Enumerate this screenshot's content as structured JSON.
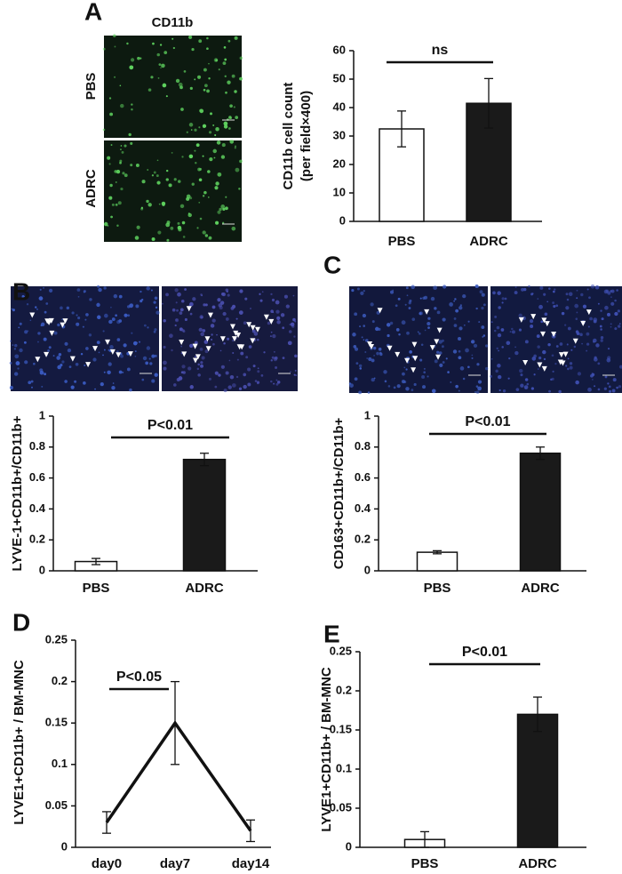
{
  "chart_data": [
    {
      "type": "bar",
      "panel": "A",
      "image_labels": {
        "column": "CD11b",
        "rows": [
          "PBS",
          "ADRC"
        ]
      },
      "ylabel": [
        "CD11b cell count",
        "(per field×400)"
      ],
      "categories": [
        "PBS",
        "ADRC"
      ],
      "values": [
        32.5,
        41.5
      ],
      "errors": [
        6.3,
        8.7
      ],
      "colors": [
        "#ffffff",
        "#1a1a1a"
      ],
      "ylim": [
        0,
        60
      ],
      "yticks": [
        0,
        10,
        20,
        30,
        40,
        50,
        60
      ],
      "annotation": "ns"
    },
    {
      "type": "bar",
      "panel": "B",
      "ylabel": [
        "LYVE-1+CD11b+/CD11b+"
      ],
      "categories": [
        "PBS",
        "ADRC"
      ],
      "values": [
        0.06,
        0.72
      ],
      "errors": [
        0.02,
        0.04
      ],
      "colors": [
        "#ffffff",
        "#1a1a1a"
      ],
      "ylim": [
        0,
        1
      ],
      "yticks": [
        0,
        0.2,
        0.4,
        0.6,
        0.8,
        1
      ],
      "annotation": "P<0.01"
    },
    {
      "type": "bar",
      "panel": "C",
      "ylabel": [
        "CD163+CD11b+/CD11b+"
      ],
      "categories": [
        "PBS",
        "ADRC"
      ],
      "values": [
        0.12,
        0.76
      ],
      "errors": [
        0.01,
        0.04
      ],
      "colors": [
        "#ffffff",
        "#1a1a1a"
      ],
      "ylim": [
        0,
        1
      ],
      "yticks": [
        0,
        0.2,
        0.4,
        0.6,
        0.8,
        1
      ],
      "annotation": "P<0.01"
    },
    {
      "type": "line",
      "panel": "D",
      "ylabel": [
        "LYVE1+CD11b+ / BM-MNC"
      ],
      "categories": [
        "day0",
        "day7",
        "day14"
      ],
      "values": [
        0.03,
        0.15,
        0.02
      ],
      "errors": [
        0.013,
        0.05,
        0.013
      ],
      "color": "#111111",
      "ylim": [
        0,
        0.25
      ],
      "yticks": [
        0,
        0.05,
        0.1,
        0.15,
        0.2,
        0.25
      ],
      "annotation": "P<0.05"
    },
    {
      "type": "bar",
      "panel": "E",
      "ylabel": [
        "LYVE1+CD11b+ / BM-MNC"
      ],
      "categories": [
        "PBS",
        "ADRC"
      ],
      "values": [
        0.01,
        0.17
      ],
      "errors": [
        0.01,
        0.022
      ],
      "colors": [
        "#ffffff",
        "#1a1a1a"
      ],
      "ylim": [
        0,
        0.25
      ],
      "yticks": [
        0,
        0.05,
        0.1,
        0.15,
        0.2,
        0.25
      ],
      "annotation": "P<0.01"
    }
  ]
}
